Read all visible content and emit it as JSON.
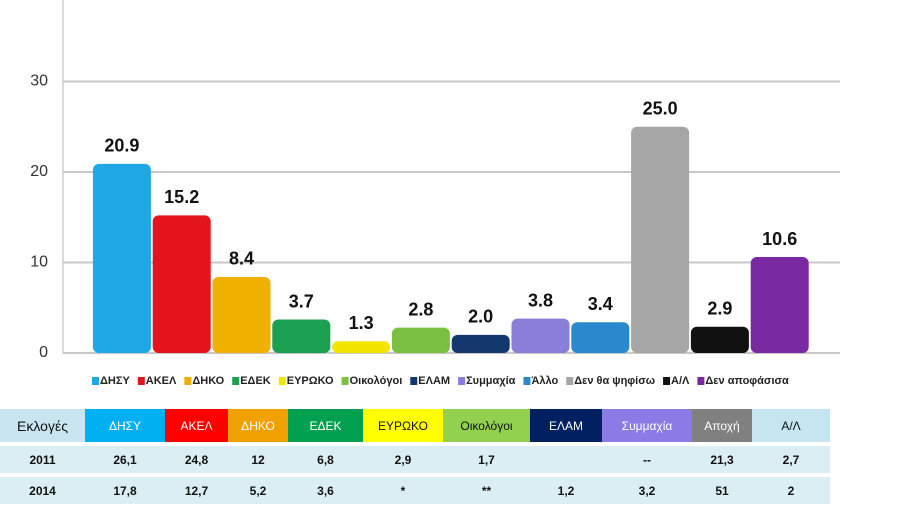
{
  "chart_data": {
    "type": "bar",
    "categories": [
      "ΔΗΣΥ",
      "ΑΚΕΛ",
      "ΔΗΚΟ",
      "ΕΔΕΚ",
      "ΕΥΡΩΚΟ",
      "Οικολόγοι",
      "ΕΛΑΜ",
      "Συμμαχία",
      "Άλλο",
      "Δεν θα ψηφίσω",
      "Α/Λ",
      "Δεν αποφάσισα"
    ],
    "values": [
      20.9,
      15.2,
      8.4,
      3.7,
      1.3,
      2.8,
      2.0,
      3.8,
      3.4,
      25.0,
      2.9,
      10.6
    ],
    "value_labels": [
      "20.9",
      "15.2",
      "8.4",
      "3.7",
      "1.3",
      "2.8",
      "2.0",
      "3.8",
      "3.4",
      "25.0",
      "2.9",
      "10.6"
    ],
    "colors": [
      "#1fa8e6",
      "#e3141c",
      "#f0b000",
      "#1aa050",
      "#f2e600",
      "#7cc043",
      "#14386e",
      "#8a7fd8",
      "#2a88cc",
      "#a6a6a6",
      "#111111",
      "#7a2aa0"
    ],
    "ylim": [
      0,
      39
    ],
    "yticks": [
      0,
      10,
      20,
      30
    ],
    "grid": true,
    "legend": "bottom"
  },
  "table": {
    "header": [
      "Εκλογές",
      "ΔΗΣΥ",
      "ΑΚΕΛ",
      "ΔΗΚΟ",
      "ΕΔΕΚ",
      "ΕΥΡΩΚΟ",
      "Οικολόγοι",
      "ΕΛΑΜ",
      "Συμμαχία",
      "Αποχή",
      "Α/Λ"
    ],
    "rows": [
      [
        "2011",
        "26,1",
        "24,8",
        "12",
        "6,8",
        "2,9",
        "1,7",
        null,
        "--",
        "21,3",
        "2,7"
      ],
      [
        "2014",
        "17,8",
        "12,7",
        "5,2",
        "3,6",
        "*",
        "**",
        "1,2",
        "3,2",
        "51",
        "2"
      ]
    ]
  }
}
